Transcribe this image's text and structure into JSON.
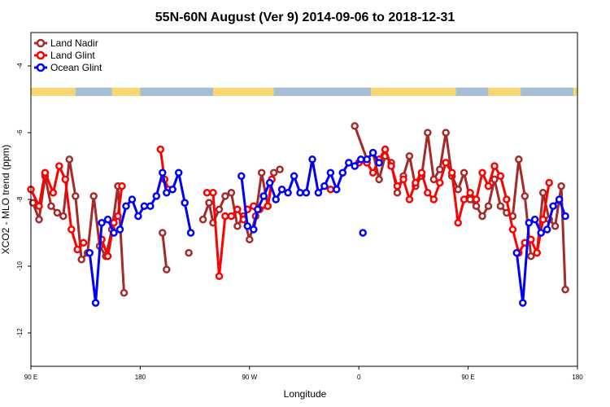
{
  "chart_data": {
    "type": "line",
    "title": "55N-60N August (Ver 9)   2014-09-06 to 2018-12-31",
    "xlabel": "Longitude",
    "ylabel": "XCO2 - MLO trend (ppm)",
    "xlim": [
      -90,
      180
    ],
    "ylim": [
      -13,
      -3
    ],
    "x_ticks": [
      {
        "value": -90,
        "label": "90 E"
      },
      {
        "value": -36,
        "label": "180"
      },
      {
        "value": 18,
        "label": "90 W"
      },
      {
        "value": 72,
        "label": "0"
      },
      {
        "value": 126,
        "label": "90 E"
      },
      {
        "value": 180,
        "label": "180"
      }
    ],
    "y_ticks": [
      {
        "value": -4,
        "label": "-4"
      },
      {
        "value": -6,
        "label": "-6"
      },
      {
        "value": -8,
        "label": "-8"
      },
      {
        "value": -10,
        "label": "-10"
      },
      {
        "value": -12,
        "label": "-12"
      }
    ],
    "legend_position": "top-left",
    "map_strip": {
      "y_top": -4.65,
      "y_bottom": -4.9,
      "land_color": "#f7d774",
      "ocean_color": "#a7bfd6"
    },
    "series": [
      {
        "name": "Land Nadir",
        "color": "#a52a2a",
        "segments": [
          [
            [
              -89,
              -8.1
            ],
            [
              -86,
              -8.6
            ],
            [
              -83,
              -7.3
            ],
            [
              -80,
              -8.2
            ],
            [
              -77,
              -8.4
            ],
            [
              -74,
              -8.5
            ],
            [
              -71,
              -6.8
            ],
            [
              -68,
              -7.9
            ],
            [
              -65,
              -9.8
            ],
            [
              -62,
              -9.6
            ],
            [
              -59,
              -7.9
            ],
            [
              -56,
              -9.4
            ],
            [
              -53,
              -9.7
            ],
            [
              -50,
              -8.9
            ],
            [
              -47,
              -7.6
            ],
            [
              -44,
              -10.8
            ]
          ],
          [
            [
              -25,
              -9.0
            ],
            [
              -23,
              -10.1
            ]
          ],
          [
            [
              -12,
              -9.6
            ]
          ],
          [
            [
              -5,
              -8.6
            ],
            [
              -2,
              -8.1
            ],
            [
              0,
              -8.7
            ],
            [
              3,
              -8.3
            ],
            [
              6,
              -7.9
            ],
            [
              9,
              -7.8
            ],
            [
              12,
              -8.8
            ],
            [
              15,
              -8.5
            ],
            [
              18,
              -9.2
            ],
            [
              21,
              -8.5
            ],
            [
              24,
              -7.2
            ],
            [
              27,
              -8.2
            ],
            [
              30,
              -7.2
            ],
            [
              33,
              -7.1
            ]
          ],
          [
            [
              70,
              -5.8
            ],
            [
              76,
              -6.8
            ],
            [
              79,
              -6.6
            ],
            [
              82,
              -7.4
            ],
            [
              85,
              -6.7
            ],
            [
              88,
              -6.9
            ],
            [
              91,
              -7.8
            ],
            [
              94,
              -7.3
            ],
            [
              97,
              -6.7
            ],
            [
              100,
              -7.6
            ],
            [
              103,
              -7.3
            ],
            [
              106,
              -6.0
            ],
            [
              109,
              -7.4
            ],
            [
              112,
              -7.1
            ],
            [
              115,
              -6.0
            ],
            [
              118,
              -7.3
            ],
            [
              121,
              -7.7
            ],
            [
              124,
              -7.2
            ],
            [
              127,
              -8.0
            ],
            [
              130,
              -8.2
            ],
            [
              133,
              -8.5
            ],
            [
              136,
              -8.2
            ],
            [
              139,
              -7.4
            ],
            [
              142,
              -8.2
            ],
            [
              145,
              -8.4
            ],
            [
              148,
              -8.5
            ],
            [
              151,
              -6.8
            ],
            [
              154,
              -7.9
            ],
            [
              157,
              -9.7
            ],
            [
              160,
              -9.6
            ],
            [
              163,
              -7.8
            ],
            [
              166,
              -8.6
            ],
            [
              169,
              -8.8
            ],
            [
              172,
              -7.6
            ],
            [
              174,
              -10.7
            ]
          ]
        ]
      },
      {
        "name": "Land Glint",
        "color": "#ff0000",
        "segments": [
          [
            [
              -90,
              -7.7
            ],
            [
              -86,
              -8.2
            ],
            [
              -83,
              -7.2
            ],
            [
              -79,
              -7.8
            ],
            [
              -76,
              -7.0
            ],
            [
              -73,
              -7.4
            ],
            [
              -70,
              -8.9
            ],
            [
              -67,
              -9.5
            ],
            [
              -64,
              -9.3
            ]
          ],
          [
            [
              -55,
              -9.2
            ],
            [
              -52,
              -9.7
            ],
            [
              -49,
              -8.7
            ],
            [
              -47,
              -8.5
            ],
            [
              -45,
              -7.6
            ]
          ],
          [
            [
              -26,
              -6.5
            ],
            [
              -24,
              -7.4
            ],
            [
              -22,
              -7.7
            ]
          ],
          [
            [
              -3,
              -7.8
            ],
            [
              0,
              -7.8
            ],
            [
              3,
              -10.3
            ],
            [
              6,
              -8.5
            ],
            [
              9,
              -8.5
            ],
            [
              12,
              -8.3
            ],
            [
              15,
              -8.6
            ],
            [
              17,
              -8.3
            ],
            [
              20,
              -8.2
            ],
            [
              23,
              -8.3
            ],
            [
              27,
              -8.2
            ],
            [
              29,
              -7.4
            ]
          ],
          [
            [
              58,
              -7.7
            ]
          ],
          [
            [
              72,
              -6.9
            ],
            [
              76,
              -6.9
            ],
            [
              79,
              -7.2
            ],
            [
              82,
              -6.8
            ],
            [
              85,
              -6.5
            ],
            [
              88,
              -7.0
            ],
            [
              91,
              -7.6
            ],
            [
              94,
              -7.4
            ],
            [
              97,
              -8.0
            ],
            [
              100,
              -7.5
            ],
            [
              103,
              -7.2
            ],
            [
              106,
              -7.8
            ],
            [
              109,
              -8.0
            ],
            [
              112,
              -7.5
            ],
            [
              115,
              -6.9
            ],
            [
              118,
              -7.2
            ],
            [
              121,
              -8.7
            ],
            [
              124,
              -8.0
            ],
            [
              127,
              -7.8
            ],
            [
              130,
              -8.0
            ],
            [
              133,
              -7.2
            ],
            [
              136,
              -7.6
            ],
            [
              139,
              -7.0
            ],
            [
              142,
              -7.3
            ],
            [
              145,
              -8.0
            ],
            [
              148,
              -8.9
            ],
            [
              151,
              -9.6
            ],
            [
              154,
              -9.3
            ],
            [
              157,
              -9.2
            ],
            [
              160,
              -9.6
            ],
            [
              163,
              -8.6
            ],
            [
              166,
              -7.5
            ]
          ]
        ]
      },
      {
        "name": "Ocean Glint",
        "color": "#0000ff",
        "segments": [
          [
            [
              -61,
              -9.6
            ],
            [
              -58,
              -11.1
            ],
            [
              -55,
              -8.7
            ],
            [
              -52,
              -8.6
            ],
            [
              -49,
              -9.0
            ],
            [
              -46,
              -8.9
            ],
            [
              -43,
              -8.2
            ],
            [
              -40,
              -8.0
            ],
            [
              -37,
              -8.5
            ],
            [
              -34,
              -8.2
            ],
            [
              -31,
              -8.2
            ],
            [
              -28,
              -7.9
            ],
            [
              -25,
              -7.2
            ],
            [
              -23,
              -7.8
            ],
            [
              -20,
              -7.7
            ],
            [
              -17,
              -7.2
            ],
            [
              -14,
              -8.1
            ],
            [
              -11,
              -9.0
            ]
          ],
          [
            [
              14,
              -7.3
            ],
            [
              17,
              -8.8
            ],
            [
              20,
              -8.9
            ],
            [
              22,
              -8.3
            ],
            [
              25,
              -7.9
            ],
            [
              28,
              -7.5
            ],
            [
              31,
              -8.0
            ],
            [
              34,
              -7.7
            ],
            [
              37,
              -7.8
            ],
            [
              40,
              -7.3
            ],
            [
              43,
              -7.8
            ],
            [
              46,
              -7.8
            ],
            [
              49,
              -6.8
            ],
            [
              52,
              -7.8
            ],
            [
              55,
              -7.6
            ],
            [
              58,
              -7.2
            ],
            [
              61,
              -7.7
            ],
            [
              64,
              -7.2
            ],
            [
              67,
              -6.9
            ],
            [
              70,
              -7.0
            ],
            [
              73,
              -6.8
            ],
            [
              76,
              -6.8
            ],
            [
              79,
              -6.6
            ],
            [
              82,
              -6.9
            ]
          ],
          [
            [
              74,
              -9.0
            ]
          ],
          [
            [
              150,
              -9.6
            ],
            [
              153,
              -11.1
            ],
            [
              156,
              -8.7
            ],
            [
              159,
              -8.6
            ],
            [
              162,
              -9.0
            ],
            [
              165,
              -8.9
            ],
            [
              168,
              -8.2
            ],
            [
              171,
              -8.0
            ],
            [
              174,
              -8.5
            ]
          ]
        ]
      }
    ]
  }
}
